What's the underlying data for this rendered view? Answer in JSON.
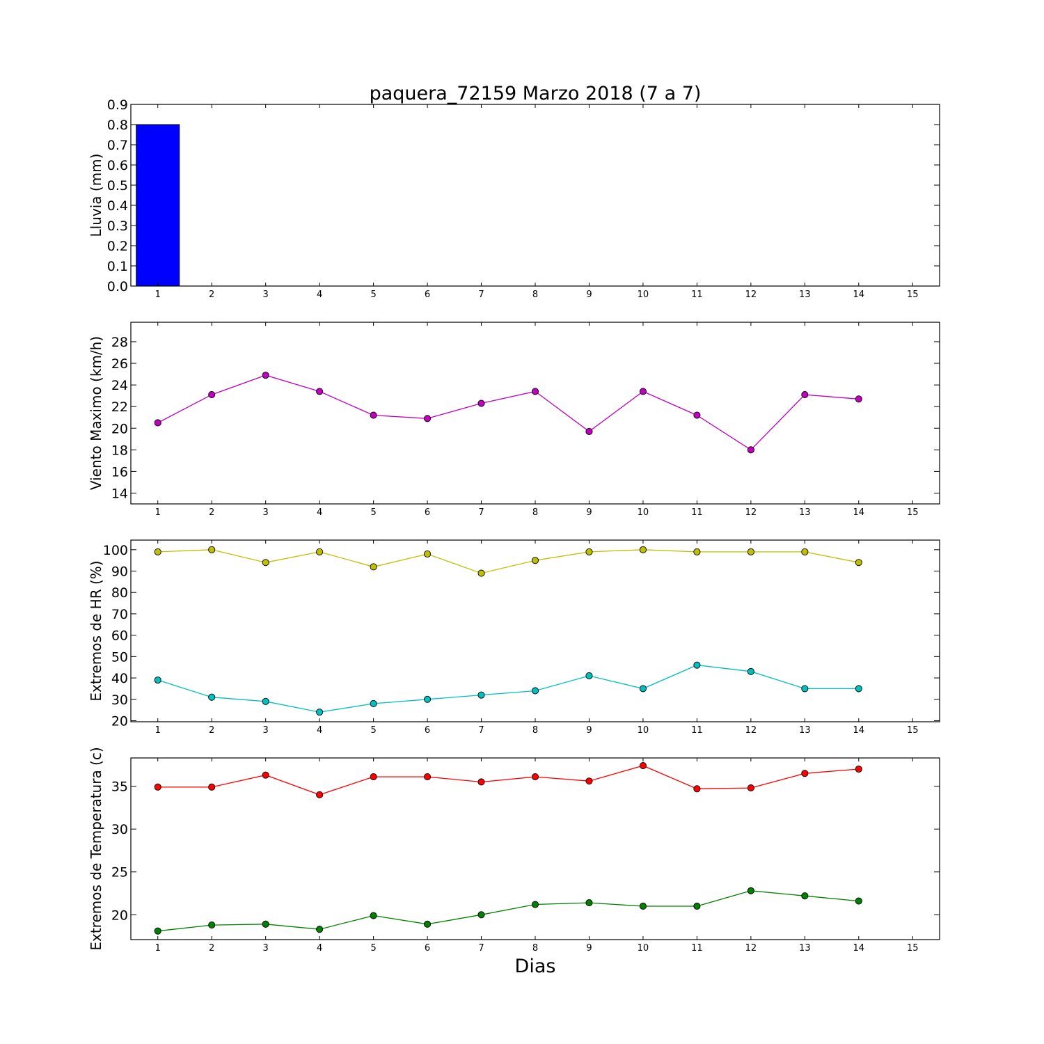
{
  "figure": {
    "title": "paquera_72159 Marzo 2018  (7 a 7)",
    "xlabel": "Dias"
  },
  "chart_data": [
    {
      "type": "bar",
      "ylabel": "Lluvia (mm)",
      "categories": [
        1,
        2,
        3,
        4,
        5,
        6,
        7,
        8,
        9,
        10,
        11,
        12,
        13,
        14,
        15
      ],
      "xlim": [
        0.5,
        15.5
      ],
      "ylim": [
        0,
        0.9
      ],
      "yticks": [
        0.0,
        0.1,
        0.2,
        0.3,
        0.4,
        0.5,
        0.6,
        0.7,
        0.8,
        0.9
      ],
      "ytick_labels": [
        "0.0",
        "0.1",
        "0.2",
        "0.3",
        "0.4",
        "0.5",
        "0.6",
        "0.7",
        "0.8",
        "0.9"
      ],
      "xticks": [
        1,
        2,
        3,
        4,
        5,
        6,
        7,
        8,
        9,
        10,
        11,
        12,
        13,
        14,
        15
      ],
      "series": [
        {
          "color": "#0000ff",
          "x": [
            1,
            2,
            3,
            4,
            5,
            6,
            7,
            8,
            9,
            10,
            11,
            12,
            13,
            14
          ],
          "values": [
            0.8,
            0,
            0,
            0,
            0,
            0,
            0,
            0,
            0,
            0,
            0,
            0,
            0,
            0
          ]
        }
      ]
    },
    {
      "type": "line",
      "ylabel": "Viento Maximo (km/h)",
      "xlim": [
        0.5,
        15.5
      ],
      "ylim": [
        13,
        29.8
      ],
      "yticks": [
        14,
        16,
        18,
        20,
        22,
        24,
        26,
        28
      ],
      "ytick_labels": [
        "14",
        "16",
        "18",
        "20",
        "22",
        "24",
        "26",
        "28"
      ],
      "xticks": [
        1,
        2,
        3,
        4,
        5,
        6,
        7,
        8,
        9,
        10,
        11,
        12,
        13,
        14,
        15
      ],
      "series": [
        {
          "color": "#bf00bf",
          "x": [
            1,
            2,
            3,
            4,
            5,
            6,
            7,
            8,
            9,
            10,
            11,
            12,
            13,
            14
          ],
          "values": [
            20.5,
            23.1,
            24.9,
            23.4,
            21.2,
            20.9,
            22.3,
            23.4,
            19.7,
            23.4,
            21.2,
            18.0,
            23.1,
            22.7
          ]
        }
      ]
    },
    {
      "type": "line",
      "ylabel": "Extremos de HR (%)",
      "xlim": [
        0.5,
        15.5
      ],
      "ylim": [
        19.5,
        104.5
      ],
      "yticks": [
        20,
        30,
        40,
        50,
        60,
        70,
        80,
        90,
        100
      ],
      "ytick_labels": [
        "20",
        "30",
        "40",
        "50",
        "60",
        "70",
        "80",
        "90",
        "100"
      ],
      "xticks": [
        1,
        2,
        3,
        4,
        5,
        6,
        7,
        8,
        9,
        10,
        11,
        12,
        13,
        14,
        15
      ],
      "series": [
        {
          "color": "#bfbf00",
          "x": [
            1,
            2,
            3,
            4,
            5,
            6,
            7,
            8,
            9,
            10,
            11,
            12,
            13,
            14
          ],
          "values": [
            99,
            100,
            94,
            99,
            92,
            98,
            89,
            95,
            99,
            100,
            99,
            99,
            99,
            94
          ]
        },
        {
          "color": "#00bfbf",
          "x": [
            1,
            2,
            3,
            4,
            5,
            6,
            7,
            8,
            9,
            10,
            11,
            12,
            13,
            14
          ],
          "values": [
            39,
            31,
            29,
            24,
            28,
            30,
            32,
            34,
            41,
            35,
            46,
            43,
            35,
            35
          ]
        }
      ]
    },
    {
      "type": "line",
      "ylabel": "Extremos de Temperatura (c)",
      "xlim": [
        0.5,
        15.5
      ],
      "ylim": [
        17.1,
        38.3
      ],
      "yticks": [
        20,
        25,
        30,
        35
      ],
      "ytick_labels": [
        "20",
        "25",
        "30",
        "35"
      ],
      "xticks": [
        1,
        2,
        3,
        4,
        5,
        6,
        7,
        8,
        9,
        10,
        11,
        12,
        13,
        14,
        15
      ],
      "series": [
        {
          "color": "#ff0000",
          "x": [
            1,
            2,
            3,
            4,
            5,
            6,
            7,
            8,
            9,
            10,
            11,
            12,
            13,
            14
          ],
          "values": [
            34.9,
            34.9,
            36.3,
            34.0,
            36.1,
            36.1,
            35.5,
            36.1,
            35.6,
            37.4,
            34.7,
            34.8,
            36.5,
            37.0
          ]
        },
        {
          "color": "#008000",
          "x": [
            1,
            2,
            3,
            4,
            5,
            6,
            7,
            8,
            9,
            10,
            11,
            12,
            13,
            14
          ],
          "values": [
            18.1,
            18.8,
            18.9,
            18.3,
            19.9,
            18.9,
            20.0,
            21.2,
            21.4,
            21.0,
            21.0,
            22.8,
            22.2,
            21.6
          ]
        }
      ]
    }
  ]
}
